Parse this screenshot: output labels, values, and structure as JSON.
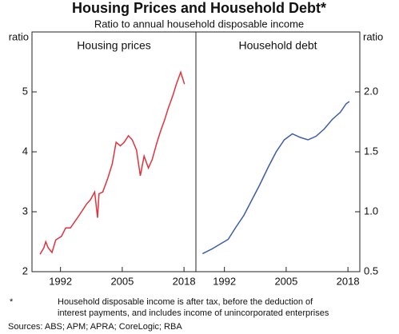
{
  "title": "Housing Prices and Household Debt*",
  "subtitle": "Ratio to annual household disposable income",
  "footnote_marker": "*",
  "footnote": [
    "Household disposable income is after tax, before the deduction of",
    "interest payments, and includes income of unincorporated enterprises"
  ],
  "sources": "Sources: ABS; APM; APRA; CoreLogic; RBA",
  "chart_data": [
    {
      "type": "line",
      "title": "Housing prices",
      "ylabel": "ratio",
      "y_axis_side": "left",
      "color": "#e2323c",
      "x": [
        1987.7,
        1988.5,
        1988.9,
        1989.4,
        1990.2,
        1991,
        1992.2,
        1993.1,
        1994.1,
        1995.3,
        1996.1,
        1997.5,
        1998.3,
        1999.2,
        1999.8,
        2000.1,
        2000.9,
        2002,
        2002.9,
        2003.7,
        2004.6,
        2005.4,
        2006.3,
        2007.1,
        2008,
        2008.8,
        2009.6,
        2010.5,
        2011.3,
        2012.2,
        2013,
        2013.9,
        2014.7,
        2015.6,
        2016.4,
        2017.3,
        2018.1
      ],
      "values": [
        2.29,
        2.4,
        2.5,
        2.4,
        2.32,
        2.53,
        2.59,
        2.73,
        2.73,
        2.87,
        2.96,
        3.13,
        3.2,
        3.33,
        2.9,
        3.3,
        3.33,
        3.57,
        3.8,
        4.16,
        4.1,
        4.16,
        4.27,
        4.2,
        4.03,
        3.6,
        3.93,
        3.73,
        3.87,
        4.13,
        4.33,
        4.53,
        4.73,
        4.93,
        5.13,
        5.33,
        5.13
      ],
      "xlim": [
        1986,
        2020.5
      ],
      "xticks": [
        1992,
        2005,
        2018
      ],
      "ylim": [
        2,
        6
      ],
      "yticks": [
        2,
        3,
        4,
        5
      ]
    },
    {
      "type": "line",
      "title": "Household debt",
      "ylabel": "ratio",
      "y_axis_side": "right",
      "color": "#3b5cab",
      "x": [
        1987.4,
        1989.4,
        1991.1,
        1992.8,
        1994.4,
        1996.1,
        1997.8,
        1999.5,
        2001.2,
        2002.9,
        2004.6,
        2006.3,
        2008,
        2009.6,
        2011.3,
        2013,
        2014.7,
        2016.4,
        2017.6,
        2018.3
      ],
      "values": [
        0.65,
        0.69,
        0.73,
        0.77,
        0.87,
        0.97,
        1.1,
        1.23,
        1.37,
        1.5,
        1.6,
        1.65,
        1.62,
        1.6,
        1.63,
        1.69,
        1.77,
        1.83,
        1.9,
        1.92
      ],
      "xlim": [
        1986,
        2020.5
      ],
      "xticks": [
        1992,
        2005,
        2018
      ],
      "ylim": [
        0.5,
        2.5
      ],
      "yticks": [
        0.5,
        {
          "value": 1,
          "label": "1.0"
        },
        1.5,
        {
          "value": 2,
          "label": "2.0"
        }
      ]
    }
  ]
}
